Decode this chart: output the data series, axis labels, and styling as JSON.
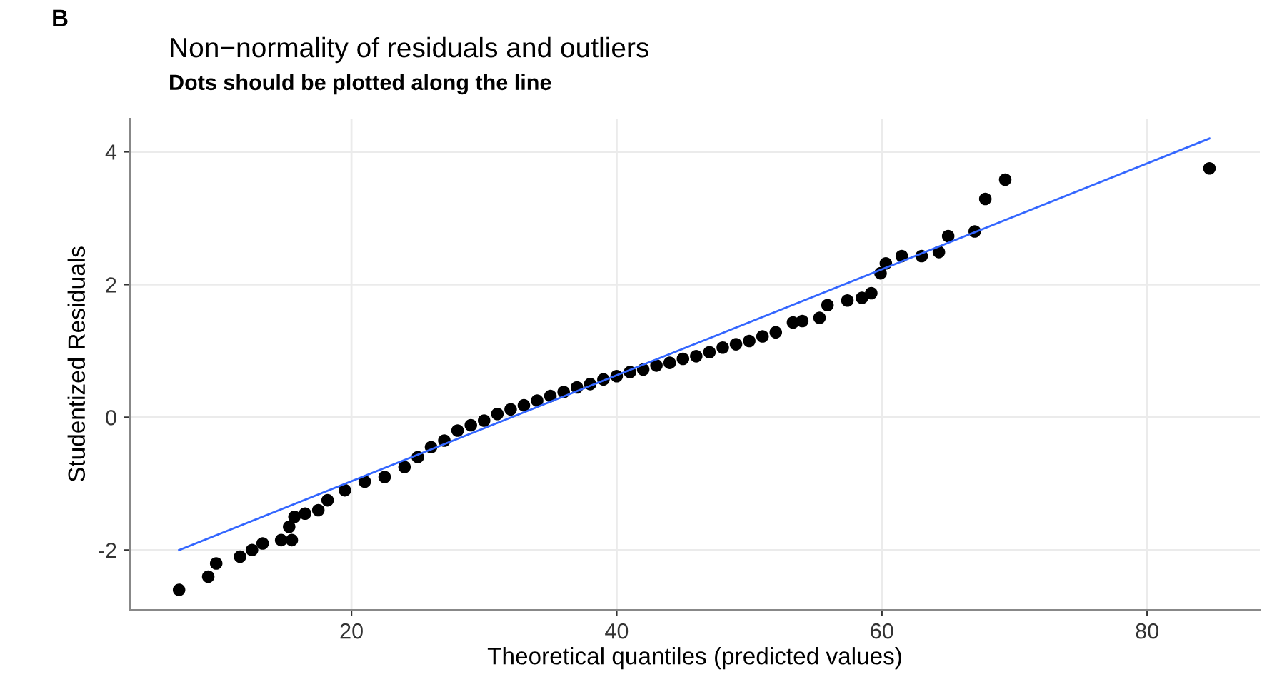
{
  "chart_data": {
    "type": "scatter",
    "title": "Non−normality of residuals and outliers",
    "subtitle": "Dots should be plotted along the line",
    "xlabel": "Theoretical quantiles (predicted values)",
    "ylabel": "Studentized Residuals",
    "annotations": [
      "B"
    ],
    "series": [
      {
        "color": "#000000",
        "marker": "circle",
        "x": [
          7,
          9.2,
          9.8,
          11.6,
          12.5,
          13.3,
          14.7,
          15.5,
          15.3,
          15.7,
          16.5,
          17.5,
          18.2,
          19.5,
          21,
          22.5,
          24,
          25,
          26,
          27,
          28,
          29,
          30,
          31,
          32,
          33,
          34,
          35,
          36,
          37,
          38,
          39,
          40,
          41,
          42,
          43,
          44,
          45,
          46,
          47,
          48,
          49,
          50,
          51,
          52,
          53.3,
          54,
          55.3,
          55.9,
          57.4,
          58.5,
          59.2,
          59.9,
          60.3,
          61.5,
          63,
          64.3,
          65,
          67,
          67.8,
          69.3,
          84.7
        ],
        "values": [
          -2.6,
          -2.4,
          -2.2,
          -2.1,
          -2.0,
          -1.9,
          -1.85,
          -1.85,
          -1.65,
          -1.5,
          -1.45,
          -1.4,
          -1.25,
          -1.1,
          -0.97,
          -0.9,
          -0.75,
          -0.6,
          -0.45,
          -0.35,
          -0.2,
          -0.12,
          -0.05,
          0.05,
          0.12,
          0.18,
          0.25,
          0.32,
          0.38,
          0.45,
          0.5,
          0.57,
          0.62,
          0.68,
          0.72,
          0.78,
          0.82,
          0.88,
          0.92,
          0.98,
          1.05,
          1.1,
          1.15,
          1.22,
          1.28,
          1.43,
          1.45,
          1.5,
          1.69,
          1.76,
          1.8,
          1.87,
          2.17,
          2.32,
          2.43,
          2.43,
          2.49,
          2.73,
          2.8,
          3.29,
          3.58,
          3.75
        ]
      },
      {
        "type": "line",
        "color": "#3366ff",
        "x": [
          7,
          84.7
        ],
        "values": [
          -2.0,
          4.2
        ]
      }
    ],
    "grid": true,
    "xlim": [
      3.3,
      88.5
    ],
    "ylim": [
      -2.9,
      4.5
    ],
    "xticks": [
      20,
      40,
      60,
      80
    ],
    "yticks": [
      -2,
      0,
      2,
      4
    ]
  }
}
